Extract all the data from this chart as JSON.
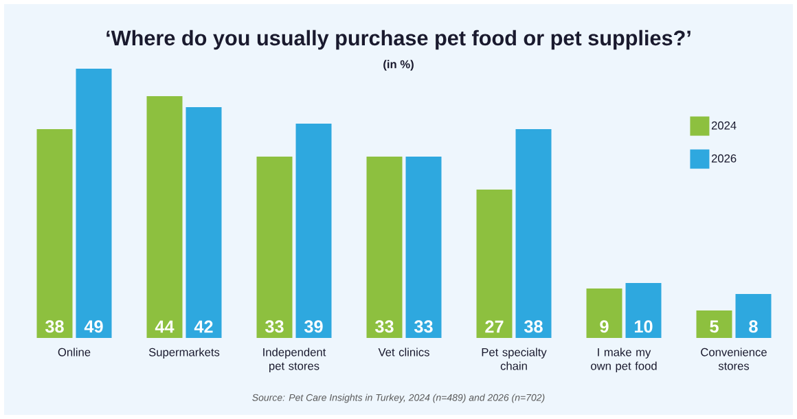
{
  "chart_data": {
    "type": "bar",
    "title": "‘Where do you usually purchase pet food or pet supplies?’",
    "subtitle": "(in %)",
    "categories": [
      "Online",
      "Supermarkets",
      "Independent pet stores",
      "Vet clinics",
      "Pet specialty chain",
      "I make my own pet food",
      "Convenience stores"
    ],
    "series": [
      {
        "name": "2024",
        "color": "#8dc03f",
        "values": [
          38,
          44,
          33,
          33,
          27,
          9,
          5
        ]
      },
      {
        "name": "2026",
        "color": "#2ea8df",
        "values": [
          49,
          42,
          39,
          33,
          38,
          10,
          8
        ]
      }
    ],
    "data_labels": true,
    "legend": "top right",
    "annotations": [
      "Source: Pet Care Insights in Turkey, 2024 (n=489) and 2026 (n=702)"
    ]
  }
}
